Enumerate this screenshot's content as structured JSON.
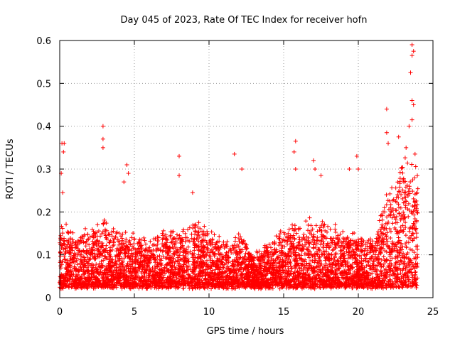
{
  "chart_data": {
    "type": "scatter",
    "title": "Day 045 of 2023, Rate Of TEC Index for receiver hofn",
    "xlabel": "GPS time / hours",
    "ylabel": "ROTI / TECUs",
    "xlim": [
      0,
      25
    ],
    "ylim": [
      0,
      0.6
    ],
    "x_ticks": [
      0,
      5,
      10,
      15,
      20,
      25
    ],
    "y_ticks": [
      0,
      0.1,
      0.2,
      0.3,
      0.4,
      0.5,
      0.6
    ],
    "x_tick_labels": [
      "0",
      "5",
      "10",
      "15",
      "20",
      "25"
    ],
    "y_tick_labels": [
      "0",
      "0.1",
      "0.2",
      "0.3",
      "0.4",
      "0.5",
      "0.6"
    ],
    "grid": true,
    "marker": "+",
    "series": [
      {
        "name": "ROTI",
        "color": "#ff0000",
        "density_profile_hours": [
          0,
          0.3,
          1,
          2,
          3,
          4,
          5,
          6,
          7,
          8,
          9,
          10,
          11,
          12,
          13,
          14,
          15,
          16,
          17,
          18,
          19,
          20,
          21,
          22,
          23,
          24
        ],
        "density_profile_typical_max": [
          0.16,
          0.16,
          0.14,
          0.15,
          0.17,
          0.15,
          0.14,
          0.12,
          0.15,
          0.14,
          0.17,
          0.15,
          0.12,
          0.14,
          0.1,
          0.12,
          0.15,
          0.16,
          0.18,
          0.16,
          0.15,
          0.14,
          0.13,
          0.24,
          0.3,
          0.28
        ],
        "peaks": [
          {
            "x": 0.1,
            "y": 0.29
          },
          {
            "x": 0.15,
            "y": 0.36
          },
          {
            "x": 0.3,
            "y": 0.36
          },
          {
            "x": 0.25,
            "y": 0.34
          },
          {
            "x": 0.2,
            "y": 0.245
          },
          {
            "x": 2.9,
            "y": 0.4
          },
          {
            "x": 2.9,
            "y": 0.37
          },
          {
            "x": 2.9,
            "y": 0.35
          },
          {
            "x": 4.5,
            "y": 0.31
          },
          {
            "x": 4.6,
            "y": 0.29
          },
          {
            "x": 4.3,
            "y": 0.27
          },
          {
            "x": 8.0,
            "y": 0.33
          },
          {
            "x": 8.0,
            "y": 0.285
          },
          {
            "x": 8.9,
            "y": 0.245
          },
          {
            "x": 11.7,
            "y": 0.335
          },
          {
            "x": 12.2,
            "y": 0.3
          },
          {
            "x": 15.8,
            "y": 0.365
          },
          {
            "x": 15.7,
            "y": 0.34
          },
          {
            "x": 15.8,
            "y": 0.3
          },
          {
            "x": 17.0,
            "y": 0.32
          },
          {
            "x": 17.1,
            "y": 0.3
          },
          {
            "x": 17.5,
            "y": 0.285
          },
          {
            "x": 19.4,
            "y": 0.3
          },
          {
            "x": 19.9,
            "y": 0.33
          },
          {
            "x": 20.0,
            "y": 0.3
          },
          {
            "x": 21.9,
            "y": 0.44
          },
          {
            "x": 21.9,
            "y": 0.385
          },
          {
            "x": 22.0,
            "y": 0.36
          },
          {
            "x": 23.4,
            "y": 0.4
          },
          {
            "x": 23.6,
            "y": 0.59
          },
          {
            "x": 23.7,
            "y": 0.575
          },
          {
            "x": 23.6,
            "y": 0.565
          },
          {
            "x": 23.5,
            "y": 0.525
          },
          {
            "x": 23.6,
            "y": 0.46
          },
          {
            "x": 23.7,
            "y": 0.45
          },
          {
            "x": 23.6,
            "y": 0.415
          },
          {
            "x": 23.2,
            "y": 0.35
          },
          {
            "x": 23.8,
            "y": 0.335
          },
          {
            "x": 22.7,
            "y": 0.375
          }
        ]
      }
    ]
  }
}
